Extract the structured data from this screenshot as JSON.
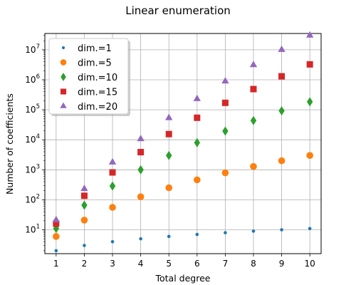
{
  "chart_data": {
    "type": "scatter",
    "title": "Linear enumeration",
    "xlabel": "Total degree",
    "ylabel": "Number of coefficients",
    "x": [
      1,
      2,
      3,
      4,
      5,
      6,
      7,
      8,
      9,
      10
    ],
    "xlim": [
      0.6,
      10.4
    ],
    "ylim": [
      1.6,
      35000000
    ],
    "yscale": "log",
    "grid": true,
    "legend_position": "top-left",
    "x_tick_labels": [
      "1",
      "2",
      "3",
      "4",
      "5",
      "6",
      "7",
      "8",
      "9",
      "10"
    ],
    "y_ticks": [
      {
        "value": 10,
        "base": "10",
        "exp": "1"
      },
      {
        "value": 100,
        "base": "10",
        "exp": "2"
      },
      {
        "value": 1000,
        "base": "10",
        "exp": "3"
      },
      {
        "value": 10000,
        "base": "10",
        "exp": "4"
      },
      {
        "value": 100000,
        "base": "10",
        "exp": "5"
      },
      {
        "value": 1000000,
        "base": "10",
        "exp": "6"
      },
      {
        "value": 10000000,
        "base": "10",
        "exp": "7"
      }
    ],
    "series": [
      {
        "name": "dim.=1",
        "marker": "point",
        "color": "#1f77b4",
        "values": [
          2,
          3,
          4,
          5,
          6,
          7,
          8,
          9,
          10,
          11
        ]
      },
      {
        "name": "dim.=5",
        "marker": "circle",
        "color": "#ff7f0e",
        "values": [
          6,
          21,
          56,
          126,
          252,
          462,
          792,
          1287,
          2002,
          3003
        ]
      },
      {
        "name": "dim.=10",
        "marker": "diamond",
        "color": "#2ca02c",
        "values": [
          11,
          66,
          286,
          1001,
          3003,
          8008,
          19448,
          43758,
          92378,
          184756
        ]
      },
      {
        "name": "dim.=15",
        "marker": "square",
        "color": "#d62728",
        "values": [
          16,
          136,
          816,
          3876,
          15504,
          54264,
          170544,
          490314,
          1307504,
          3268760
        ]
      },
      {
        "name": "dim.=20",
        "marker": "triangle",
        "color": "#9467bd",
        "values": [
          21,
          231,
          1771,
          10626,
          53130,
          230230,
          888030,
          3108105,
          10015005,
          30045015
        ]
      }
    ]
  }
}
